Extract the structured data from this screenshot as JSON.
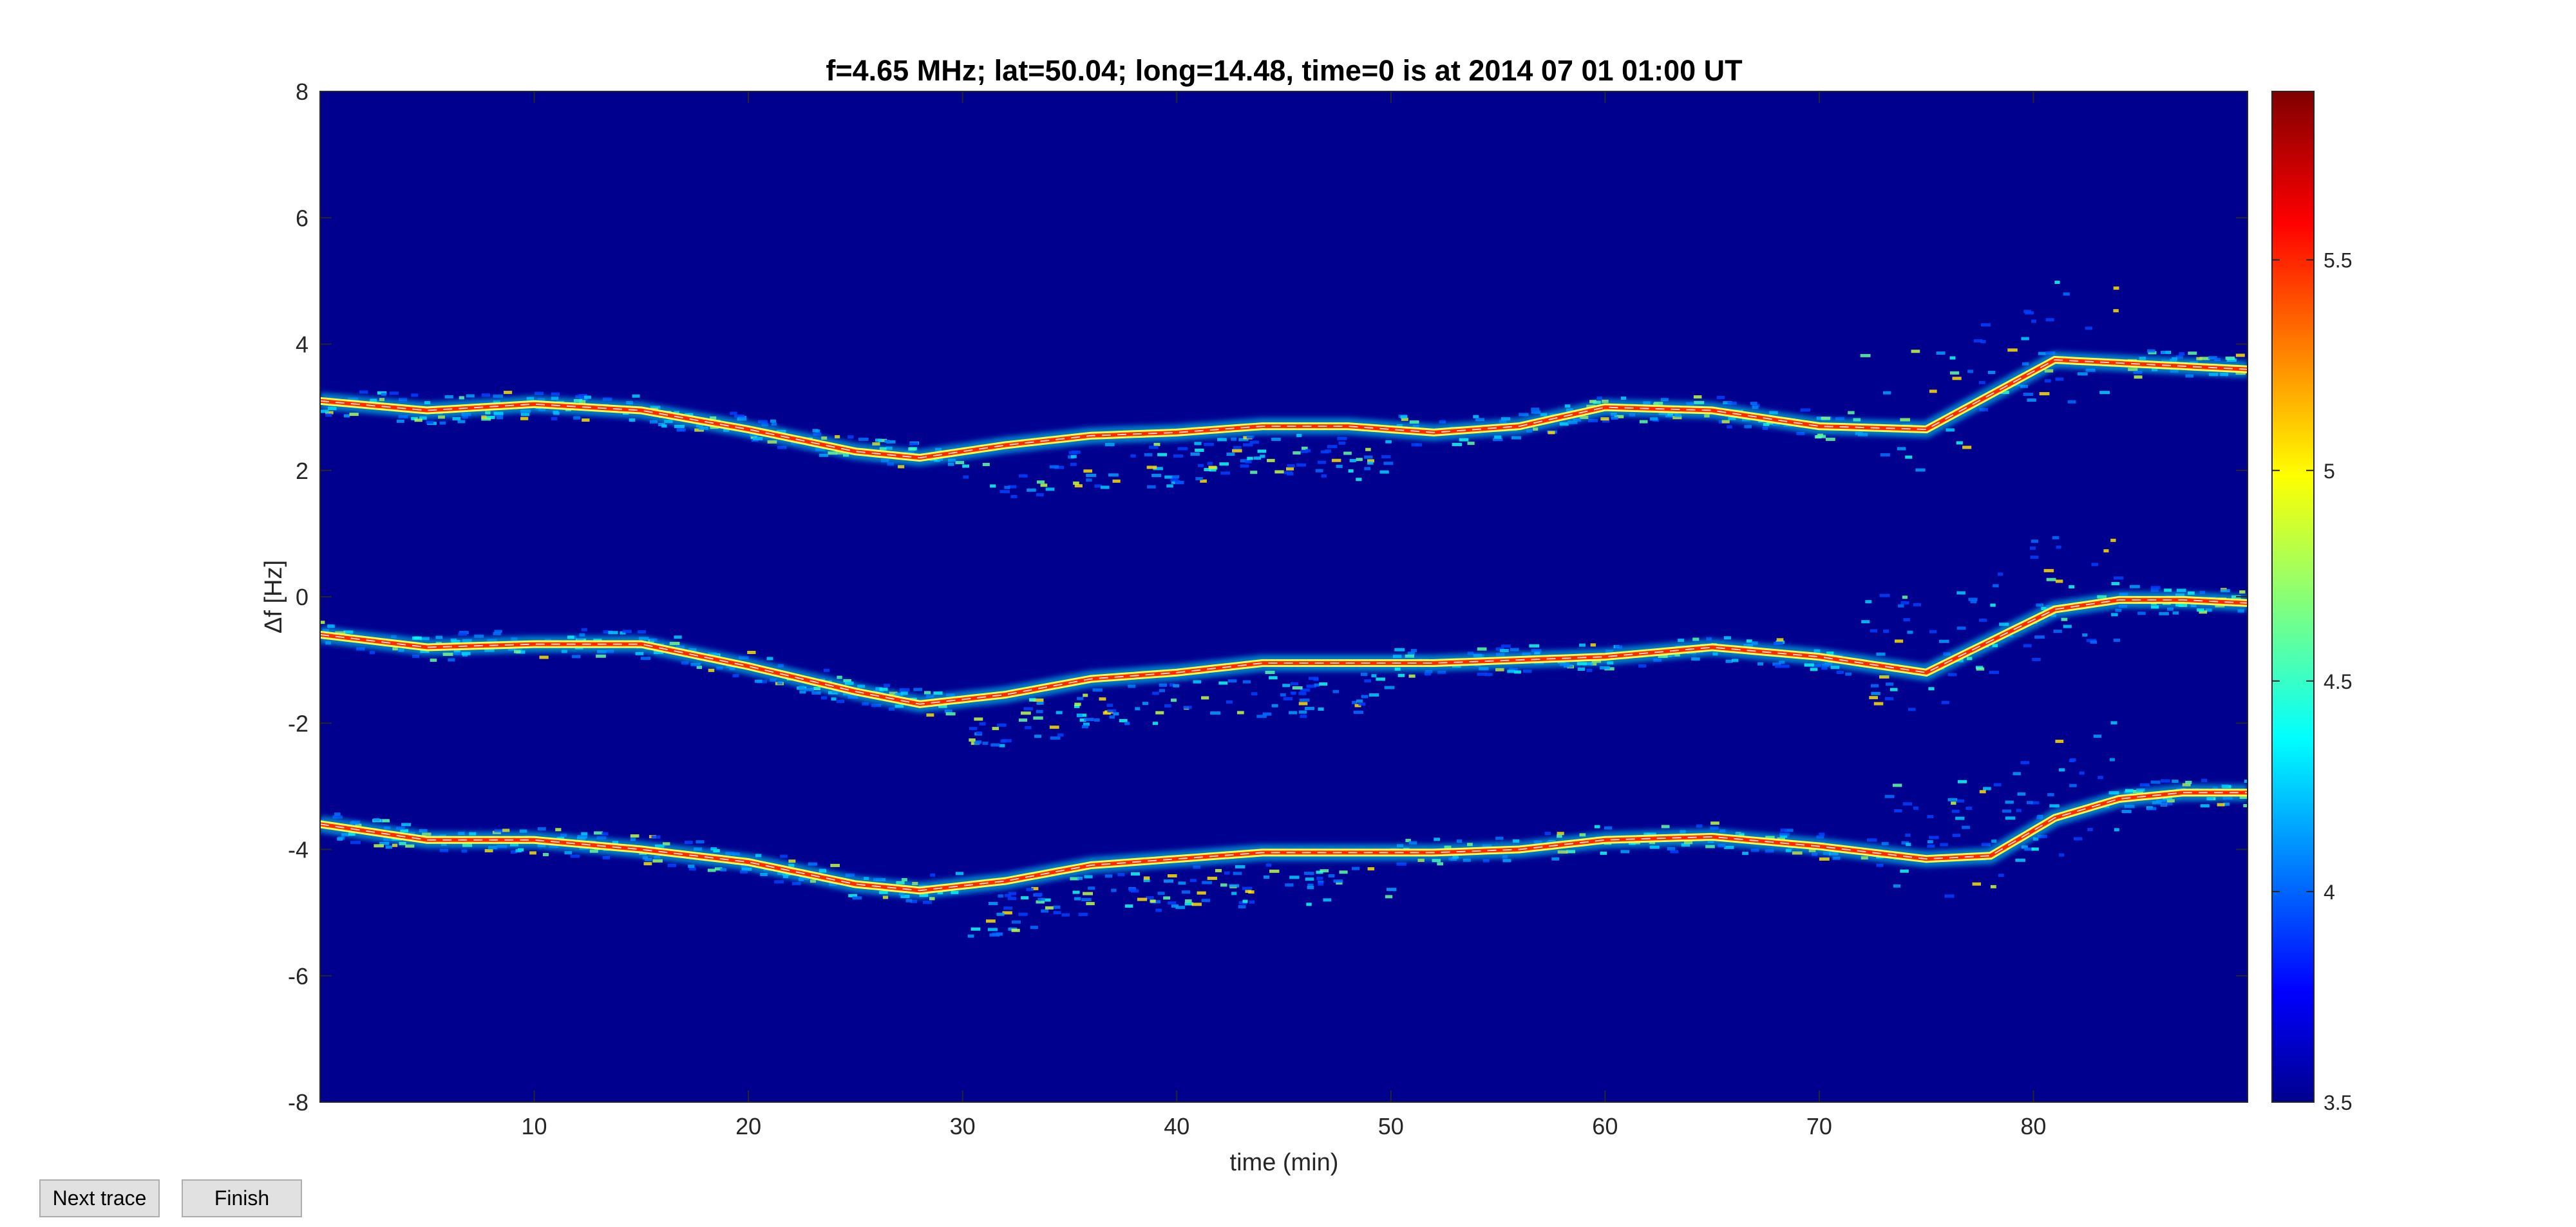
{
  "buttons": {
    "next": "Next trace",
    "finish": "Finish"
  },
  "colors": {
    "background": "#00008f",
    "trace_core": "#ff3000",
    "speckle": "#00c8ff"
  },
  "chart_data": {
    "type": "heatmap",
    "title": "f=4.65 MHz;  lat=50.04; long=14.48, time=0 is at 2014 07 01 01:00 UT",
    "xlabel": "time (min)",
    "ylabel": "Δf [Hz]",
    "xlim": [
      0,
      90
    ],
    "ylim": [
      -8,
      8
    ],
    "xticks": [
      10,
      20,
      30,
      40,
      50,
      60,
      70,
      80
    ],
    "yticks": [
      8,
      6,
      4,
      2,
      0,
      -2,
      -4,
      -6,
      -8
    ],
    "colorbar": {
      "colormap": "jet",
      "limits": [
        3.5,
        5.9
      ],
      "ticks": [
        3.5,
        4,
        4.5,
        5,
        5.5
      ]
    },
    "grid": false,
    "series": [
      {
        "x": [
          0,
          5,
          10,
          15,
          20,
          25,
          28,
          32,
          36,
          40,
          44,
          48,
          52,
          56,
          60,
          65,
          70,
          75,
          78,
          81,
          84,
          87,
          90
        ],
        "y": [
          3.1,
          2.95,
          3.05,
          2.95,
          2.65,
          2.3,
          2.2,
          2.4,
          2.55,
          2.6,
          2.7,
          2.7,
          2.6,
          2.7,
          3.0,
          2.95,
          2.7,
          2.65,
          3.2,
          3.75,
          3.7,
          3.65,
          3.6
        ]
      },
      {
        "x": [
          0,
          5,
          10,
          15,
          20,
          25,
          28,
          32,
          36,
          40,
          44,
          48,
          52,
          56,
          60,
          65,
          70,
          75,
          78,
          81,
          84,
          87,
          90
        ],
        "y": [
          -0.6,
          -0.8,
          -0.75,
          -0.75,
          -1.1,
          -1.5,
          -1.7,
          -1.55,
          -1.3,
          -1.2,
          -1.05,
          -1.05,
          -1.05,
          -1.0,
          -0.95,
          -0.8,
          -0.95,
          -1.2,
          -0.7,
          -0.2,
          -0.05,
          -0.05,
          -0.1
        ]
      },
      {
        "x": [
          0,
          5,
          10,
          15,
          20,
          25,
          28,
          32,
          36,
          40,
          44,
          48,
          52,
          56,
          60,
          65,
          70,
          75,
          78,
          81,
          84,
          87,
          90
        ],
        "y": [
          -3.6,
          -3.85,
          -3.85,
          -4.0,
          -4.2,
          -4.55,
          -4.65,
          -4.5,
          -4.25,
          -4.15,
          -4.05,
          -4.05,
          -4.05,
          -4.0,
          -3.85,
          -3.8,
          -3.95,
          -4.15,
          -4.1,
          -3.5,
          -3.2,
          -3.1,
          -3.1
        ]
      }
    ]
  }
}
